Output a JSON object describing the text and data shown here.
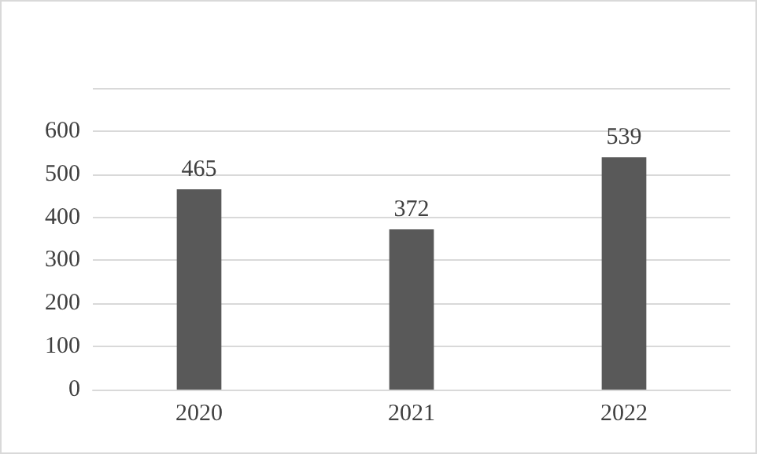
{
  "chart_data": {
    "type": "bar",
    "categories": [
      "2020",
      "2021",
      "2022"
    ],
    "values": [
      465,
      372,
      539
    ],
    "color": "#595959",
    "ylim": [
      0,
      700
    ],
    "yticks": [
      0,
      100,
      200,
      300,
      400,
      500,
      600,
      {
        "value": 700,
        "label": null
      }
    ],
    "grid": "y",
    "data_labels": true
  }
}
